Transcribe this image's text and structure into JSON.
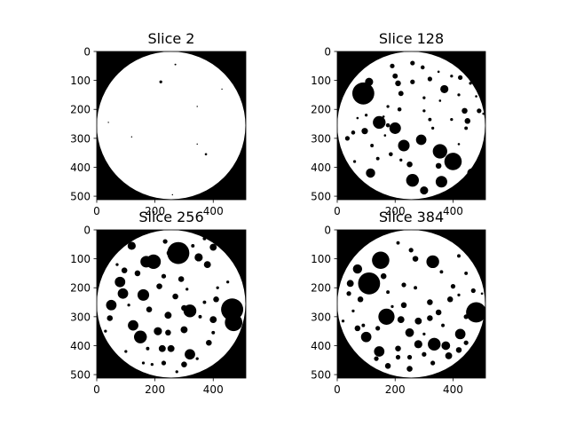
{
  "chart_data": [
    {
      "type": "heatmap",
      "title": "Slice 2",
      "xticks": [
        0,
        200,
        400
      ],
      "yticks": [
        0,
        100,
        200,
        300,
        400,
        500
      ],
      "xlim": [
        0,
        511
      ],
      "ylim": [
        511,
        0
      ],
      "colormap": "gray",
      "disk": {
        "cx": 255.5,
        "cy": 255.5,
        "r": 255
      },
      "holes": [
        [
          270,
          45,
          3
        ],
        [
          220,
          105,
          5
        ],
        [
          430,
          130,
          2
        ],
        [
          345,
          190,
          2
        ],
        [
          40,
          245,
          2
        ],
        [
          345,
          320,
          2
        ],
        [
          375,
          355,
          4
        ],
        [
          260,
          495,
          2
        ],
        [
          120,
          295,
          1
        ]
      ]
    },
    {
      "type": "heatmap",
      "title": "Slice 128",
      "xticks": [
        0,
        200,
        400
      ],
      "yticks": [
        0,
        100,
        200,
        300,
        400,
        500
      ],
      "xlim": [
        0,
        511
      ],
      "ylim": [
        511,
        0
      ],
      "colormap": "gray",
      "disk": {
        "cx": 255.5,
        "cy": 255.5,
        "r": 255
      },
      "holes": [
        [
          90,
          145,
          38
        ],
        [
          145,
          245,
          22
        ],
        [
          110,
          105,
          14
        ],
        [
          75,
          55,
          12
        ],
        [
          200,
          85,
          9
        ],
        [
          190,
          50,
          8
        ],
        [
          210,
          110,
          10
        ],
        [
          260,
          105,
          8
        ],
        [
          320,
          95,
          8
        ],
        [
          370,
          130,
          14
        ],
        [
          425,
          90,
          8
        ],
        [
          395,
          85,
          5
        ],
        [
          295,
          55,
          7
        ],
        [
          260,
          40,
          8
        ],
        [
          220,
          145,
          9
        ],
        [
          215,
          200,
          7
        ],
        [
          175,
          190,
          5
        ],
        [
          160,
          225,
          4
        ],
        [
          175,
          255,
          7
        ],
        [
          200,
          265,
          20
        ],
        [
          230,
          325,
          20
        ],
        [
          290,
          305,
          18
        ],
        [
          250,
          390,
          10
        ],
        [
          260,
          445,
          22
        ],
        [
          350,
          395,
          10
        ],
        [
          355,
          345,
          25
        ],
        [
          400,
          380,
          30
        ],
        [
          360,
          450,
          20
        ],
        [
          300,
          480,
          14
        ],
        [
          220,
          375,
          5
        ],
        [
          185,
          355,
          7
        ],
        [
          140,
          370,
          6
        ],
        [
          115,
          420,
          16
        ],
        [
          60,
          380,
          5
        ],
        [
          35,
          300,
          8
        ],
        [
          55,
          280,
          7
        ],
        [
          95,
          275,
          11
        ],
        [
          120,
          325,
          6
        ],
        [
          100,
          220,
          5
        ],
        [
          70,
          230,
          4
        ],
        [
          440,
          205,
          10
        ],
        [
          450,
          240,
          10
        ],
        [
          445,
          265,
          6
        ],
        [
          490,
          205,
          8
        ],
        [
          420,
          150,
          5
        ],
        [
          480,
          155,
          4
        ],
        [
          465,
          420,
          16
        ],
        [
          395,
          235,
          5
        ],
        [
          320,
          235,
          6
        ],
        [
          300,
          205,
          5
        ],
        [
          330,
          265,
          5
        ],
        [
          355,
          170,
          4
        ],
        [
          420,
          320,
          4
        ],
        [
          300,
          160,
          5
        ],
        [
          165,
          290,
          4
        ],
        [
          460,
          110,
          5
        ],
        [
          505,
          215,
          4
        ],
        [
          350,
          70,
          4
        ]
      ]
    },
    {
      "type": "heatmap",
      "title": "Slice 256",
      "xticks": [
        0,
        200,
        400
      ],
      "yticks": [
        0,
        100,
        200,
        300,
        400,
        500
      ],
      "xlim": [
        0,
        511
      ],
      "ylim": [
        511,
        0
      ],
      "colormap": "gray",
      "disk": {
        "cx": 255.5,
        "cy": 255.5,
        "r": 255
      },
      "holes": [
        [
          280,
          80,
          38
        ],
        [
          195,
          110,
          25
        ],
        [
          170,
          110,
          20
        ],
        [
          80,
          180,
          18
        ],
        [
          90,
          220,
          18
        ],
        [
          160,
          225,
          20
        ],
        [
          50,
          260,
          18
        ],
        [
          45,
          305,
          10
        ],
        [
          125,
          330,
          18
        ],
        [
          150,
          370,
          22
        ],
        [
          210,
          350,
          14
        ],
        [
          245,
          355,
          10
        ],
        [
          300,
          345,
          12
        ],
        [
          320,
          280,
          22
        ],
        [
          465,
          275,
          38
        ],
        [
          470,
          320,
          30
        ],
        [
          400,
          310,
          12
        ],
        [
          410,
          240,
          10
        ],
        [
          225,
          410,
          12
        ],
        [
          255,
          410,
          12
        ],
        [
          175,
          410,
          6
        ],
        [
          230,
          460,
          8
        ],
        [
          160,
          460,
          5
        ],
        [
          320,
          430,
          18
        ],
        [
          300,
          465,
          10
        ],
        [
          345,
          445,
          5
        ],
        [
          385,
          390,
          10
        ],
        [
          400,
          355,
          6
        ],
        [
          370,
          250,
          6
        ],
        [
          355,
          300,
          6
        ],
        [
          245,
          295,
          12
        ],
        [
          300,
          270,
          10
        ],
        [
          270,
          230,
          10
        ],
        [
          215,
          195,
          10
        ],
        [
          230,
          160,
          8
        ],
        [
          290,
          170,
          10
        ],
        [
          350,
          95,
          14
        ],
        [
          380,
          120,
          12
        ],
        [
          400,
          60,
          12
        ],
        [
          370,
          30,
          6
        ],
        [
          330,
          55,
          6
        ],
        [
          235,
          40,
          8
        ],
        [
          120,
          55,
          14
        ],
        [
          95,
          140,
          10
        ],
        [
          70,
          120,
          5
        ],
        [
          140,
          150,
          10
        ],
        [
          250,
          80,
          10
        ],
        [
          310,
          205,
          5
        ],
        [
          180,
          275,
          10
        ],
        [
          110,
          260,
          5
        ],
        [
          30,
          350,
          5
        ],
        [
          100,
          420,
          5
        ],
        [
          415,
          200,
          5
        ],
        [
          450,
          180,
          5
        ],
        [
          190,
          465,
          5
        ],
        [
          275,
          490,
          5
        ]
      ]
    },
    {
      "type": "heatmap",
      "title": "Slice 384",
      "xticks": [
        0,
        200,
        400
      ],
      "yticks": [
        0,
        100,
        200,
        300,
        400,
        500
      ],
      "xlim": [
        0,
        511
      ],
      "ylim": [
        511,
        0
      ],
      "colormap": "gray",
      "disk": {
        "cx": 255.5,
        "cy": 255.5,
        "r": 255
      },
      "holes": [
        [
          110,
          185,
          38
        ],
        [
          150,
          105,
          30
        ],
        [
          70,
          135,
          16
        ],
        [
          45,
          185,
          12
        ],
        [
          40,
          220,
          8
        ],
        [
          80,
          240,
          10
        ],
        [
          160,
          160,
          10
        ],
        [
          230,
          190,
          8
        ],
        [
          230,
          260,
          10
        ],
        [
          175,
          215,
          6
        ],
        [
          170,
          300,
          28
        ],
        [
          220,
          310,
          12
        ],
        [
          250,
          355,
          15
        ],
        [
          280,
          315,
          12
        ],
        [
          320,
          305,
          10
        ],
        [
          350,
          285,
          10
        ],
        [
          320,
          250,
          10
        ],
        [
          400,
          195,
          8
        ],
        [
          330,
          110,
          22
        ],
        [
          270,
          100,
          10
        ],
        [
          255,
          70,
          8
        ],
        [
          210,
          45,
          6
        ],
        [
          360,
          145,
          6
        ],
        [
          420,
          90,
          6
        ],
        [
          445,
          150,
          6
        ],
        [
          480,
          285,
          35
        ],
        [
          425,
          360,
          18
        ],
        [
          445,
          300,
          8
        ],
        [
          445,
          390,
          8
        ],
        [
          420,
          415,
          10
        ],
        [
          335,
          395,
          22
        ],
        [
          375,
          400,
          15
        ],
        [
          385,
          435,
          12
        ],
        [
          280,
          395,
          14
        ],
        [
          300,
          430,
          8
        ],
        [
          250,
          440,
          8
        ],
        [
          210,
          410,
          10
        ],
        [
          210,
          440,
          8
        ],
        [
          145,
          420,
          18
        ],
        [
          100,
          370,
          18
        ],
        [
          70,
          340,
          10
        ],
        [
          90,
          330,
          6
        ],
        [
          55,
          280,
          5
        ],
        [
          140,
          340,
          8
        ],
        [
          135,
          445,
          8
        ],
        [
          175,
          470,
          10
        ],
        [
          250,
          480,
          10
        ],
        [
          330,
          460,
          8
        ],
        [
          365,
          330,
          6
        ],
        [
          390,
          240,
          10
        ],
        [
          420,
          225,
          5
        ],
        [
          270,
          200,
          6
        ],
        [
          190,
          265,
          5
        ],
        [
          300,
          360,
          5
        ],
        [
          470,
          210,
          8
        ],
        [
          20,
          315,
          5
        ],
        [
          500,
          220,
          4
        ]
      ]
    }
  ]
}
